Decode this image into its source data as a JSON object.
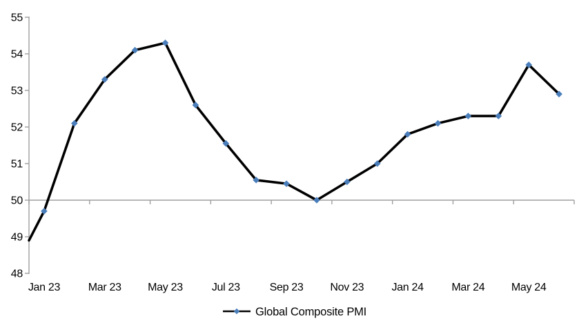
{
  "chart_data": {
    "type": "line",
    "title": "",
    "xlabel": "",
    "ylabel": "",
    "ylim": [
      48,
      55
    ],
    "y_ticks": [
      48,
      49,
      50,
      51,
      52,
      53,
      54,
      55
    ],
    "x_axis_cross_at": 50,
    "gridlines": "none",
    "legend_position": "bottom-center",
    "axis_color": "#9e9e9e",
    "x_tick_labels": [
      "Jan 23",
      "Mar 23",
      "May 23",
      "Jul 23",
      "Sep 23",
      "Nov 23",
      "Jan 24",
      "Mar 24",
      "May 24"
    ],
    "series": [
      {
        "name": "Global Composite PMI",
        "marker": "diamond",
        "line_color": "#000000",
        "marker_color": "#4a7ebb",
        "leadin_value_at_axis": 48.9,
        "x": [
          "Jan 23",
          "Feb 23",
          "Mar 23",
          "Apr 23",
          "May 23",
          "Jun 23",
          "Jul 23",
          "Aug 23",
          "Sep 23",
          "Oct 23",
          "Nov 23",
          "Dec 23",
          "Jan 24",
          "Feb 24",
          "Mar 24",
          "Apr 24",
          "May 24",
          "Jun 24"
        ],
        "values": [
          49.7,
          52.1,
          53.3,
          54.1,
          54.3,
          52.6,
          51.55,
          50.55,
          50.45,
          50.0,
          50.5,
          51.0,
          51.8,
          52.1,
          52.3,
          52.3,
          53.7,
          52.9
        ]
      }
    ]
  },
  "legend": {
    "label": "Global Composite PMI"
  }
}
